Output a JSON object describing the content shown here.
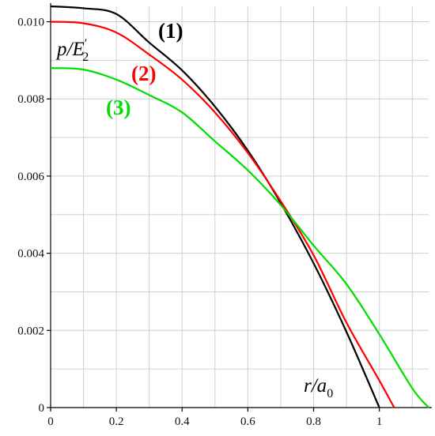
{
  "chart_data": {
    "type": "line",
    "xlabel_main": "r/a",
    "xlabel_sub": "0",
    "ylabel_main": "p/E",
    "ylabel_sup": "′",
    "ylabel_sub": "2",
    "xlim": [
      0,
      1.15
    ],
    "ylim": [
      0,
      0.0104
    ],
    "x_ticks": [
      0,
      0.2,
      0.4,
      0.6,
      0.8,
      1
    ],
    "x_tick_labels": [
      "0",
      "0.2",
      "0.4",
      "0.6",
      "0.8",
      "1"
    ],
    "y_ticks": [
      0,
      0.002,
      0.004,
      0.006,
      0.008,
      0.01
    ],
    "y_tick_labels": [
      "0",
      "0.002",
      "0.004",
      "0.006",
      "0.008",
      "0.010"
    ],
    "grid": true,
    "series": [
      {
        "name": "(1)",
        "color": "#000000",
        "x": [
          0,
          0.1,
          0.2,
          0.3,
          0.4,
          0.5,
          0.6,
          0.7,
          0.8,
          0.9,
          1.0
        ],
        "y": [
          0.0104,
          0.01035,
          0.0102,
          0.00946,
          0.00874,
          0.0078,
          0.00666,
          0.0053,
          0.00374,
          0.00196,
          0
        ]
      },
      {
        "name": "(2)",
        "color": "#ff0000",
        "x": [
          0,
          0.1,
          0.2,
          0.3,
          0.4,
          0.5,
          0.6,
          0.7,
          0.8,
          0.9,
          1.0,
          1.045
        ],
        "y": [
          0.01,
          0.00996,
          0.00972,
          0.00915,
          0.0085,
          0.00765,
          0.0066,
          0.00535,
          0.00395,
          0.0022,
          0.0007,
          0
        ]
      },
      {
        "name": "(3)",
        "color": "#00dd00",
        "x": [
          0,
          0.1,
          0.2,
          0.3,
          0.4,
          0.5,
          0.6,
          0.7,
          0.8,
          0.9,
          1.0,
          1.1,
          1.15
        ],
        "y": [
          0.0088,
          0.00876,
          0.0085,
          0.0081,
          0.00765,
          0.0069,
          0.00615,
          0.00525,
          0.0042,
          0.0032,
          0.0019,
          0.0005,
          0
        ]
      }
    ]
  }
}
